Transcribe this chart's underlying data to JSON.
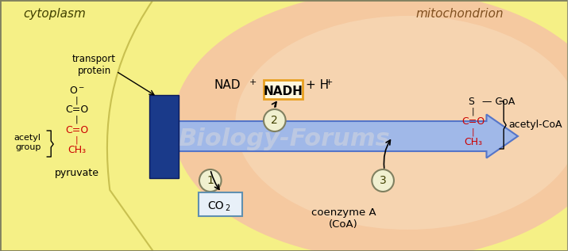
{
  "bg_left_color": "#f5f086",
  "bg_right_color": "#f5c9a0",
  "cytoplasm_label": "cytoplasm",
  "mitochondrion_label": "mitochondrion",
  "transport_protein_label": "transport\nprotein",
  "pyruvate_label": "pyruvate",
  "acetyl_group_label": "acetyl\ngroup",
  "acetyl_coa_label": "acetyl-CoA",
  "nad_label": "NAD",
  "nad_sup": "+",
  "nadh_label": "NADH",
  "nadh_sup": "+ H",
  "nadh_sup2": "+",
  "co2_label": "CO",
  "co2_sub": "2",
  "coenzyme_label": "coenzyme A\n(CoA)",
  "arrow_color": "#a0b8e8",
  "arrow_edge_color": "#5575c8",
  "protein_rect_color": "#1a3a8a",
  "nadh_box_color": "#e8a020",
  "co2_box_color": "#6090b0",
  "molecule_color_black": "#000000",
  "molecule_color_red": "#cc0000",
  "watermark_color": "#c8d0e0",
  "circle_color": "#f0f0d0",
  "circle_edge_color": "#808060"
}
